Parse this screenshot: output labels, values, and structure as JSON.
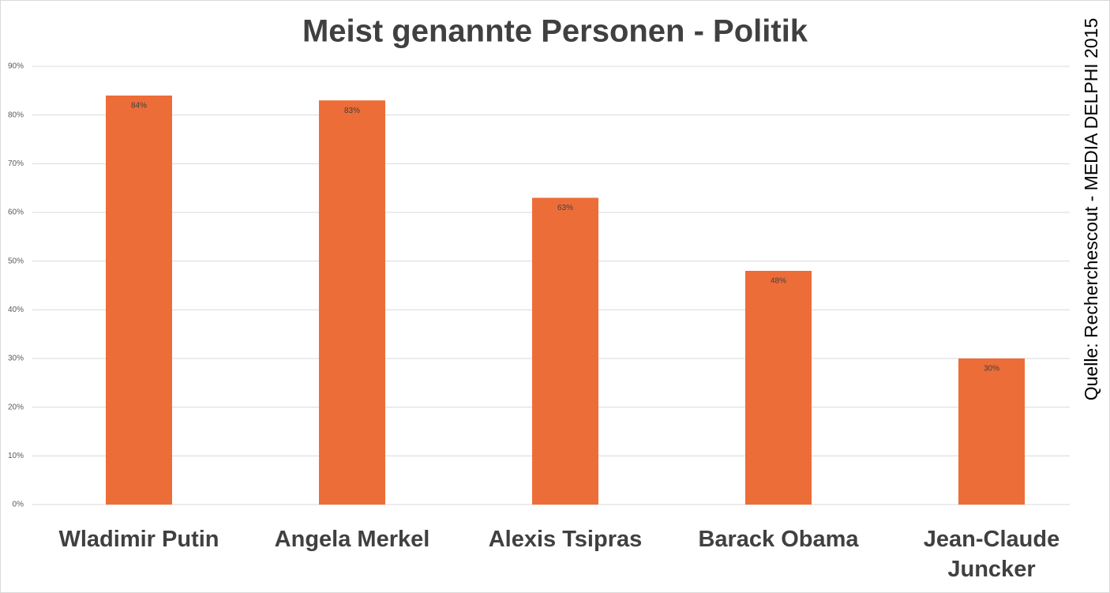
{
  "chart_data": {
    "type": "bar",
    "title": "Meist genannte Personen - Politik",
    "source": "Quelle: Recherchescout - MEDIA DELPHI 2015",
    "categories": [
      "Wladimir Putin",
      "Angela Merkel",
      "Alexis Tsipras",
      "Barack Obama",
      "Jean-Claude Juncker"
    ],
    "values": [
      84,
      83,
      63,
      48,
      30
    ],
    "value_labels": [
      "84%",
      "83%",
      "63%",
      "48%",
      "30%"
    ],
    "color": "#ed6d38",
    "ylim": [
      0,
      90
    ],
    "yticks": [
      {
        "value": 0,
        "label": "0%"
      },
      {
        "value": 10,
        "label": "10%"
      },
      {
        "value": 20,
        "label": "20%"
      },
      {
        "value": 30,
        "label": "30%"
      },
      {
        "value": 40,
        "label": "40%"
      },
      {
        "value": 50,
        "label": "50%"
      },
      {
        "value": 60,
        "label": "60%"
      },
      {
        "value": 70,
        "label": "70%"
      },
      {
        "value": 80,
        "label": "80%"
      },
      {
        "value": 90,
        "label": "90%"
      }
    ],
    "grid": true
  }
}
